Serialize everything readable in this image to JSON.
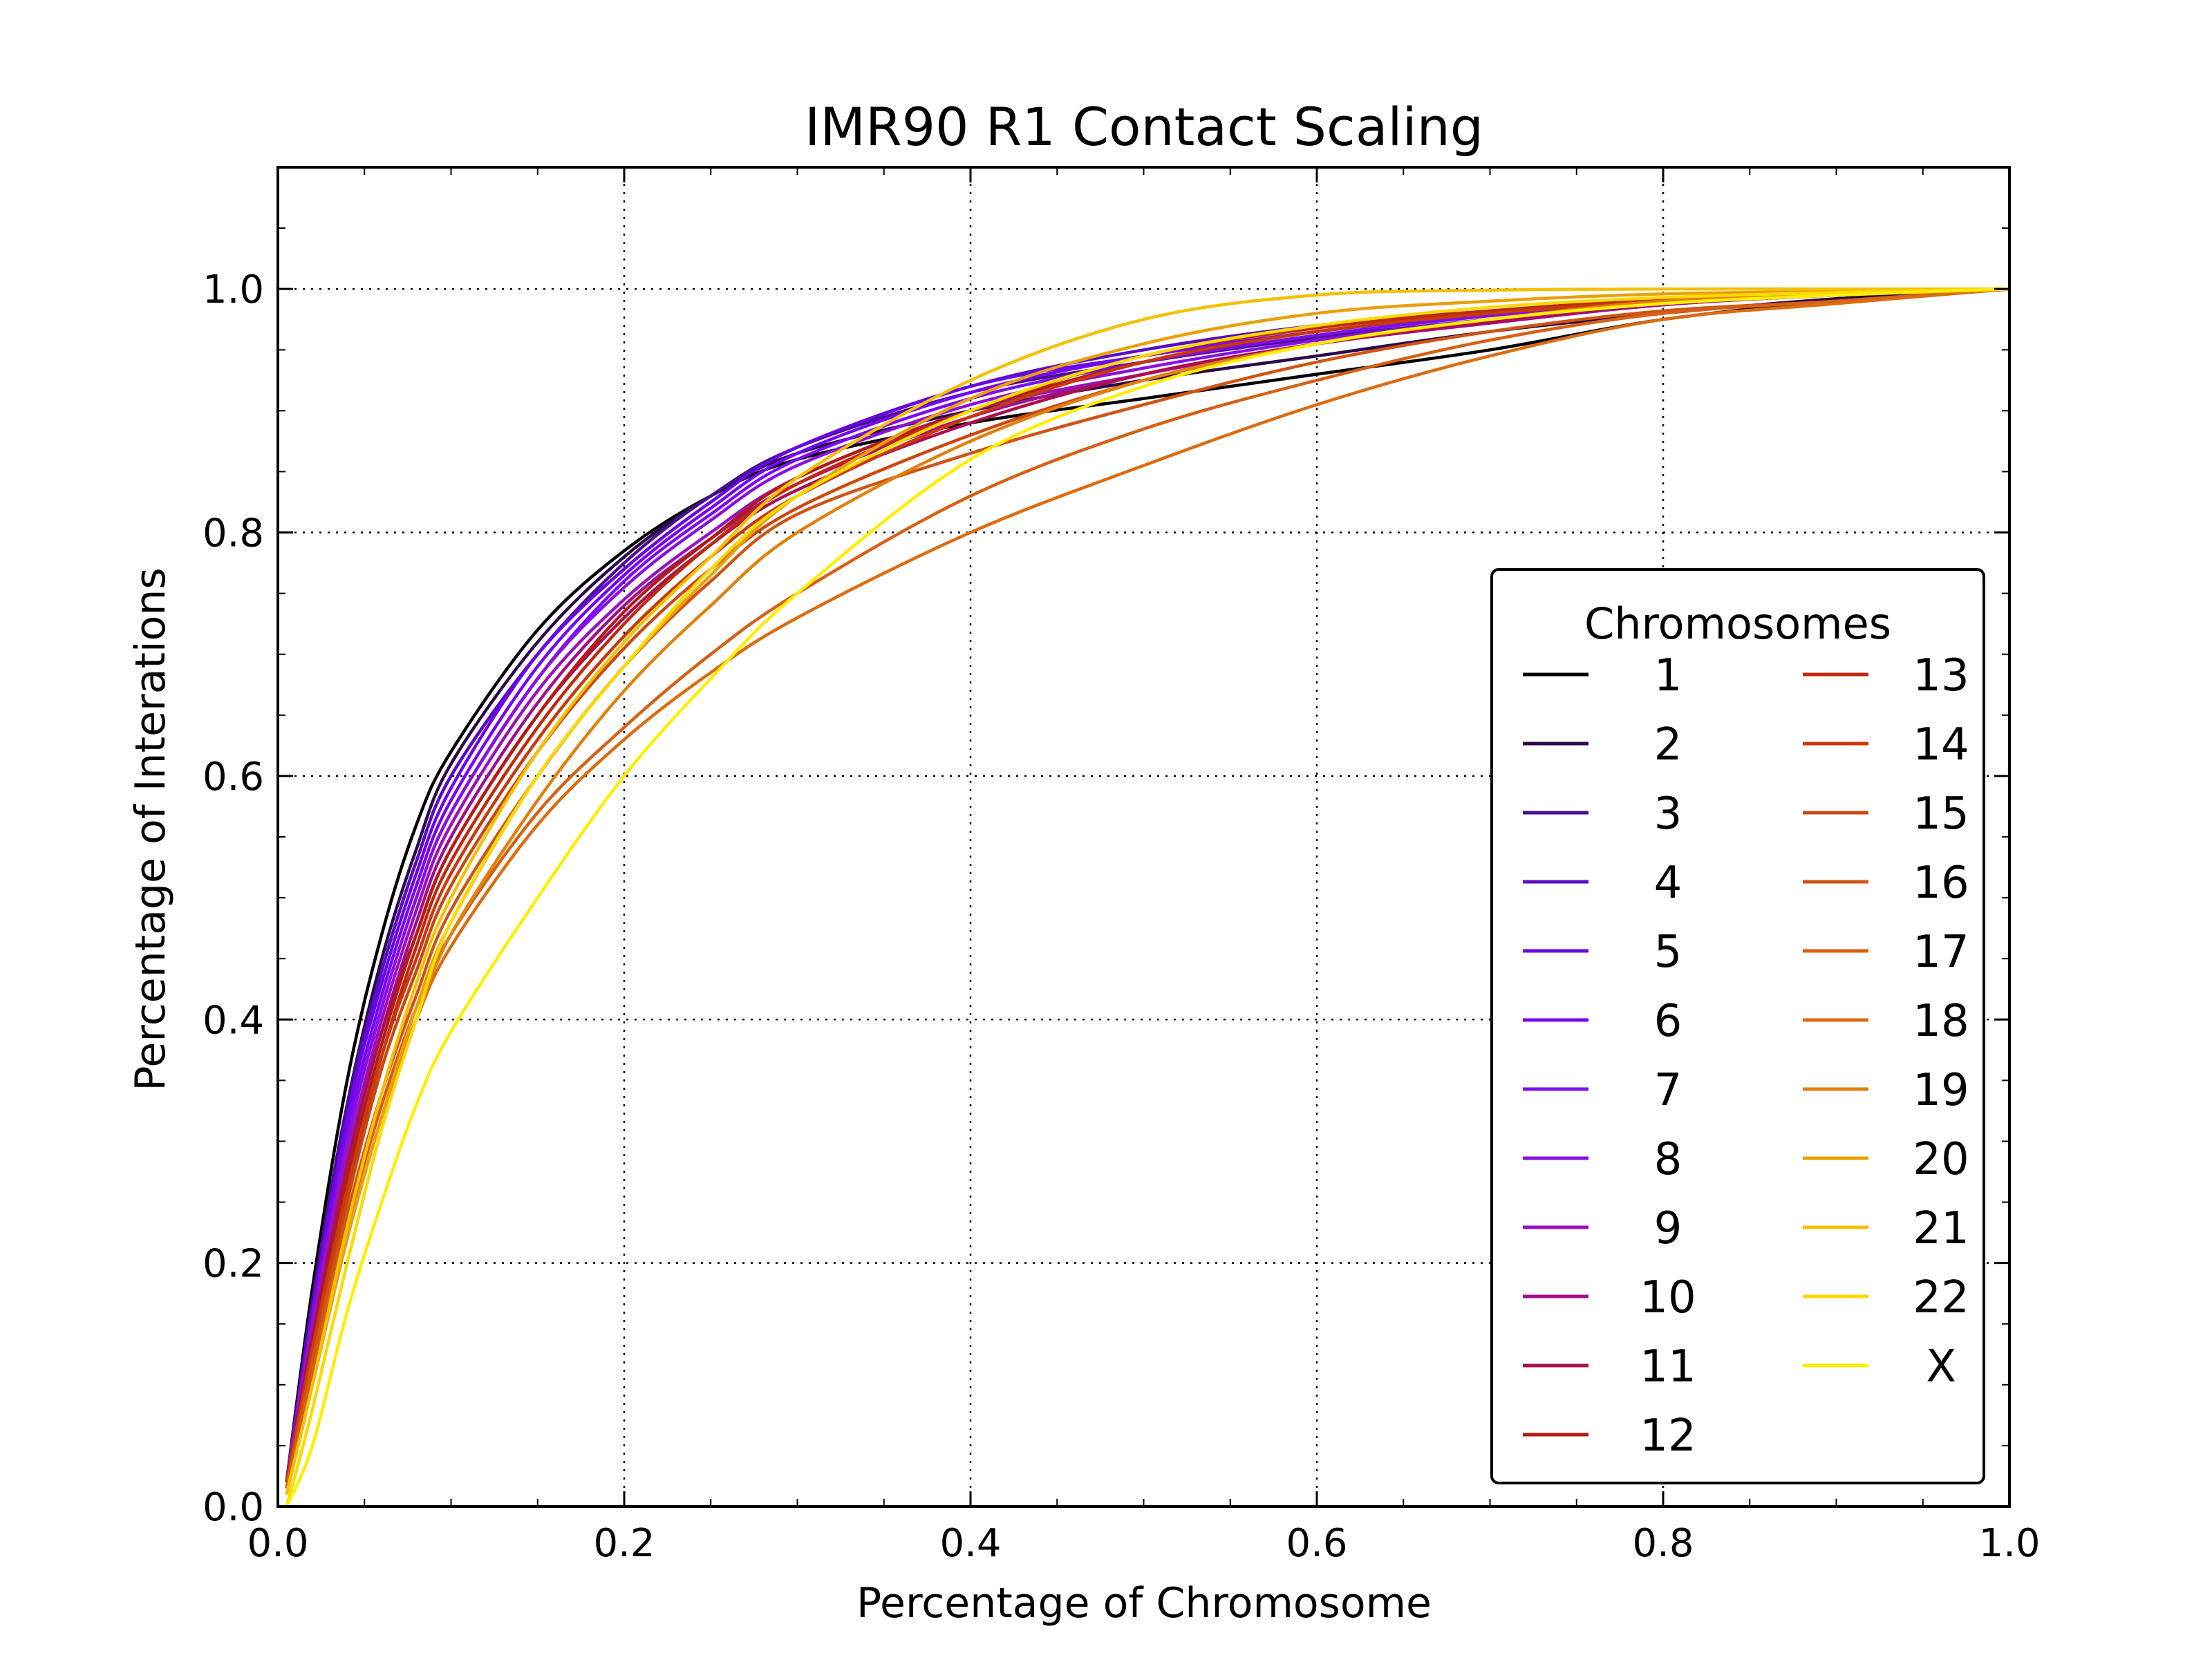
{
  "chart_data": {
    "type": "line",
    "title": "IMR90 R1 Contact Scaling",
    "xlabel": "Percentage of Chromosome",
    "ylabel": "Percentage of Interations",
    "xlim": [
      0.0,
      1.0
    ],
    "ylim": [
      0.0,
      1.1
    ],
    "xticks": [
      "0.0",
      "0.2",
      "0.4",
      "0.6",
      "0.8",
      "1.0"
    ],
    "yticks": [
      "0.0",
      "0.2",
      "0.4",
      "0.6",
      "0.8",
      "1.0"
    ],
    "grid": true,
    "legend": {
      "title": "Chromosomes",
      "position": "center-right",
      "columns": 2
    },
    "x": [
      0.005,
      0.02,
      0.04,
      0.06,
      0.08,
      0.1,
      0.15,
      0.2,
      0.25,
      0.3,
      0.4,
      0.5,
      0.6,
      0.7,
      0.8,
      0.9,
      1.0
    ],
    "series": [
      {
        "name": "1",
        "color": "#000000",
        "values": [
          0.02,
          0.18,
          0.35,
          0.47,
          0.56,
          0.62,
          0.72,
          0.785,
          0.83,
          0.86,
          0.89,
          0.91,
          0.93,
          0.95,
          0.975,
          0.99,
          1.0
        ]
      },
      {
        "name": "2",
        "color": "#2a0a4a",
        "values": [
          0.02,
          0.17,
          0.33,
          0.45,
          0.54,
          0.61,
          0.71,
          0.78,
          0.83,
          0.865,
          0.9,
          0.925,
          0.945,
          0.965,
          0.98,
          0.992,
          1.0
        ]
      },
      {
        "name": "3",
        "color": "#4a108e",
        "values": [
          0.02,
          0.17,
          0.33,
          0.44,
          0.53,
          0.6,
          0.7,
          0.775,
          0.83,
          0.87,
          0.915,
          0.94,
          0.96,
          0.975,
          0.988,
          0.995,
          1.0
        ]
      },
      {
        "name": "4",
        "color": "#5a0cc4",
        "values": [
          0.02,
          0.16,
          0.32,
          0.44,
          0.53,
          0.6,
          0.7,
          0.77,
          0.825,
          0.87,
          0.92,
          0.95,
          0.97,
          0.982,
          0.992,
          0.997,
          1.0
        ]
      },
      {
        "name": "5",
        "color": "#6a06e6",
        "values": [
          0.02,
          0.16,
          0.32,
          0.43,
          0.52,
          0.59,
          0.7,
          0.77,
          0.825,
          0.87,
          0.92,
          0.945,
          0.965,
          0.98,
          0.99,
          0.996,
          1.0
        ]
      },
      {
        "name": "6",
        "color": "#7408f0",
        "values": [
          0.02,
          0.16,
          0.31,
          0.42,
          0.51,
          0.58,
          0.69,
          0.765,
          0.82,
          0.865,
          0.915,
          0.945,
          0.965,
          0.98,
          0.99,
          0.996,
          1.0
        ]
      },
      {
        "name": "7",
        "color": "#7e0cf0",
        "values": [
          0.02,
          0.15,
          0.3,
          0.41,
          0.5,
          0.57,
          0.68,
          0.76,
          0.815,
          0.86,
          0.91,
          0.94,
          0.962,
          0.978,
          0.99,
          0.996,
          1.0
        ]
      },
      {
        "name": "8",
        "color": "#8a10e0",
        "values": [
          0.02,
          0.15,
          0.3,
          0.41,
          0.5,
          0.57,
          0.68,
          0.755,
          0.81,
          0.855,
          0.905,
          0.935,
          0.958,
          0.975,
          0.988,
          0.995,
          1.0
        ]
      },
      {
        "name": "9",
        "color": "#9a12c0",
        "values": [
          0.02,
          0.15,
          0.29,
          0.4,
          0.49,
          0.56,
          0.67,
          0.745,
          0.8,
          0.845,
          0.9,
          0.93,
          0.955,
          0.972,
          0.987,
          0.995,
          1.0
        ]
      },
      {
        "name": "10",
        "color": "#a0108c",
        "values": [
          0.02,
          0.14,
          0.28,
          0.39,
          0.48,
          0.55,
          0.66,
          0.74,
          0.795,
          0.84,
          0.895,
          0.93,
          0.955,
          0.972,
          0.987,
          0.995,
          1.0
        ]
      },
      {
        "name": "11",
        "color": "#aa1050",
        "values": [
          0.02,
          0.14,
          0.28,
          0.39,
          0.47,
          0.54,
          0.65,
          0.73,
          0.79,
          0.835,
          0.89,
          0.93,
          0.955,
          0.973,
          0.988,
          0.995,
          1.0
        ]
      },
      {
        "name": "12",
        "color": "#b41c14",
        "values": [
          0.02,
          0.13,
          0.27,
          0.38,
          0.47,
          0.54,
          0.65,
          0.735,
          0.795,
          0.845,
          0.9,
          0.94,
          0.965,
          0.98,
          0.99,
          0.996,
          1.0
        ]
      },
      {
        "name": "13",
        "color": "#c02a0c",
        "values": [
          0.02,
          0.13,
          0.26,
          0.37,
          0.46,
          0.53,
          0.64,
          0.725,
          0.79,
          0.84,
          0.9,
          0.945,
          0.968,
          0.982,
          0.991,
          0.996,
          1.0
        ]
      },
      {
        "name": "14",
        "color": "#c83a0c",
        "values": [
          0.02,
          0.13,
          0.26,
          0.37,
          0.45,
          0.52,
          0.63,
          0.715,
          0.78,
          0.83,
          0.895,
          0.94,
          0.965,
          0.98,
          0.99,
          0.996,
          1.0
        ]
      },
      {
        "name": "15",
        "color": "#cc4810",
        "values": [
          0.015,
          0.12,
          0.25,
          0.36,
          0.44,
          0.51,
          0.62,
          0.705,
          0.77,
          0.82,
          0.88,
          0.925,
          0.955,
          0.975,
          0.988,
          0.995,
          1.0
        ]
      },
      {
        "name": "16",
        "color": "#d05414",
        "values": [
          0.015,
          0.12,
          0.24,
          0.34,
          0.42,
          0.49,
          0.6,
          0.69,
          0.76,
          0.815,
          0.865,
          0.905,
          0.94,
          0.965,
          0.982,
          0.99,
          1.0
        ]
      },
      {
        "name": "17",
        "color": "#d66014",
        "values": [
          0.015,
          0.11,
          0.23,
          0.33,
          0.41,
          0.47,
          0.57,
          0.64,
          0.7,
          0.75,
          0.83,
          0.885,
          0.925,
          0.958,
          0.98,
          0.99,
          1.0
        ]
      },
      {
        "name": "18",
        "color": "#dc6c10",
        "values": [
          0.01,
          0.1,
          0.22,
          0.32,
          0.4,
          0.46,
          0.56,
          0.63,
          0.685,
          0.73,
          0.8,
          0.855,
          0.905,
          0.945,
          0.975,
          0.988,
          1.0
        ]
      },
      {
        "name": "19",
        "color": "#e0800e",
        "values": [
          0.01,
          0.1,
          0.22,
          0.32,
          0.4,
          0.47,
          0.58,
          0.67,
          0.74,
          0.8,
          0.875,
          0.925,
          0.955,
          0.975,
          0.99,
          0.996,
          1.0
        ]
      },
      {
        "name": "20",
        "color": "#eaa00a",
        "values": [
          0.01,
          0.1,
          0.22,
          0.32,
          0.41,
          0.48,
          0.6,
          0.69,
          0.765,
          0.83,
          0.91,
          0.955,
          0.98,
          0.99,
          0.996,
          0.998,
          1.0
        ]
      },
      {
        "name": "21",
        "color": "#f4c004",
        "values": [
          0.01,
          0.1,
          0.23,
          0.34,
          0.43,
          0.5,
          0.62,
          0.71,
          0.78,
          0.845,
          0.925,
          0.975,
          0.995,
          0.999,
          1.0,
          1.0,
          1.0
        ]
      },
      {
        "name": "22",
        "color": "#fada00",
        "values": [
          0.0,
          0.08,
          0.2,
          0.31,
          0.4,
          0.48,
          0.6,
          0.69,
          0.77,
          0.83,
          0.9,
          0.945,
          0.97,
          0.985,
          0.993,
          0.997,
          1.0
        ]
      },
      {
        "name": "X",
        "color": "#ffee00",
        "values": [
          0.0,
          0.05,
          0.16,
          0.25,
          0.33,
          0.39,
          0.5,
          0.6,
          0.68,
          0.75,
          0.86,
          0.92,
          0.955,
          0.975,
          0.988,
          0.995,
          1.0
        ]
      }
    ]
  }
}
